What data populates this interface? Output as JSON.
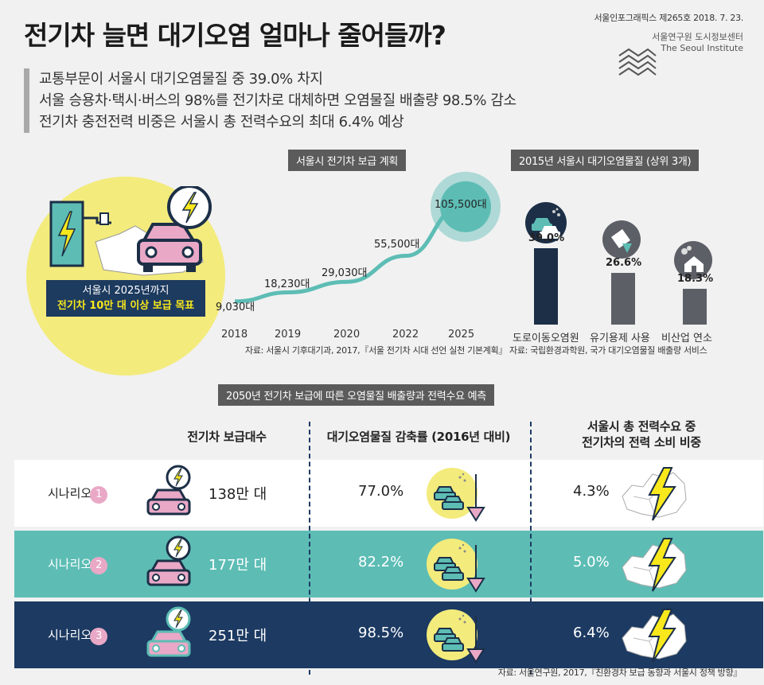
{
  "header": {
    "title": "전기차 늘면 대기오염 얼마나 줄어들까?",
    "issue": "서울인포그래픽스 제265호 2018. 7. 23.",
    "institute_kr": "서울연구원 도시정보센터",
    "institute_en": "The Seoul Institute"
  },
  "summary": [
    "교통부문이 서울시 대기오염물질 중 39.0% 차지",
    "서울 승용차·택시·버스의 98%를 전기차로 대체하면 오염물질 배출량 98.5% 감소",
    "전기차 충전전력 비중은 서울시 총 전력수요의 최대 6.4% 예상"
  ],
  "goal": {
    "line1": "서울시 2025년까지",
    "line2": "전기차 10만 대 이상 보급 목표"
  },
  "plan": {
    "title": "서울시 전기차 보급 계획",
    "source": "자료: 서울시 기후대기과, 2017,『서울 전기차 시대 선언 실천 기본계획』"
  },
  "pollution": {
    "title": "2015년 서울시 대기오염물질 (상위 3개)",
    "source": "자료: 국립환경과학원, 국가 대기오염물질 배출량 서비스"
  },
  "forecast": {
    "title": "2050년 전기차 보급에 따른 오염물질 배출량과 전력수요 예측",
    "col1": "전기차 보급대수",
    "col2": "대기오염물질 감축률 (2016년 대비)",
    "col3_l1": "서울시 총 전력수요 중",
    "col3_l2": "전기차의 전력 소비 비중",
    "rows": [
      {
        "label": "시나리오",
        "num": "1",
        "cars": "138만 대",
        "reduction": "77.0%",
        "power": "4.3%"
      },
      {
        "label": "시나리오",
        "num": "2",
        "cars": "177만 대",
        "reduction": "82.2%",
        "power": "5.0%"
      },
      {
        "label": "시나리오",
        "num": "3",
        "cars": "251만 대",
        "reduction": "98.5%",
        "power": "6.4%"
      }
    ]
  },
  "footer": "자료: 서울연구원, 2017,『친환경차 보급 동향과 서울시 정책 방향』",
  "chart_data": [
    {
      "type": "line",
      "title": "서울시 전기차 보급 계획",
      "categories": [
        "2018",
        "2019",
        "2020",
        "2022",
        "2025"
      ],
      "values": [
        9030,
        18230,
        29030,
        55500,
        105500
      ],
      "labels": [
        "9,030대",
        "18,230대",
        "29,030대",
        "55,500대",
        "105,500대"
      ],
      "ylim": [
        0,
        110000
      ]
    },
    {
      "type": "bar",
      "title": "2015년 서울시 대기오염물질 (상위 3개)",
      "categories": [
        "도로이동오염원",
        "유기용제 사용",
        "비산업 연소"
      ],
      "values": [
        39.0,
        26.6,
        18.3
      ],
      "labels": [
        "39.0%",
        "26.6%",
        "18.3%"
      ],
      "ylim": [
        0,
        40
      ]
    }
  ],
  "colors": {
    "navy": "#1c3a62",
    "teal": "#5dbdb5",
    "yellow": "#f3eb7c",
    "pink": "#e9a8c6",
    "gray": "#5c5f66"
  }
}
